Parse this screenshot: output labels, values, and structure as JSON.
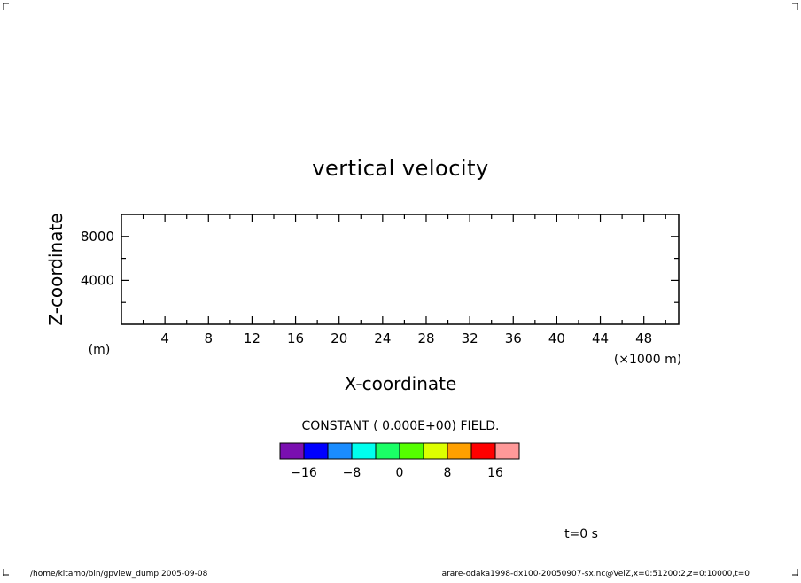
{
  "chart_data": {
    "type": "heatmap",
    "title": "vertical velocity",
    "xlabel": "X-coordinate",
    "ylabel": "Z-coordinate",
    "x_unit": "(×1000 m)",
    "y_unit": "(m)",
    "xlim": [
      0,
      51.2
    ],
    "ylim": [
      0,
      10000
    ],
    "x_ticks": [
      4,
      8,
      12,
      16,
      20,
      24,
      28,
      32,
      36,
      40,
      44,
      48
    ],
    "x_tick_labels": [
      "4",
      "8",
      "12",
      "16",
      "20",
      "24",
      "28",
      "32",
      "36",
      "40",
      "44",
      "48"
    ],
    "x_minor_step": 2,
    "y_ticks": [
      4000,
      8000
    ],
    "y_tick_labels": [
      "4000",
      "8000"
    ],
    "y_minor_step": 2000,
    "field_note": "CONSTANT ( 0.000E+00) FIELD.",
    "field_value": 0,
    "colorbar": {
      "colors": [
        "#7a0fb0",
        "#0000ff",
        "#1a8cff",
        "#00ffee",
        "#1aff66",
        "#55ff00",
        "#ddff00",
        "#ffa000",
        "#ff0000",
        "#ff9999"
      ],
      "tick_positions": [
        1,
        3,
        5,
        7,
        9
      ],
      "tick_labels": [
        "−16",
        "−8",
        "0",
        "8",
        "16"
      ]
    },
    "time_label": "t=0 s"
  },
  "footer": {
    "left": "/home/kitamo/bin/gpview_dump  2005-09-08",
    "right": "arare-odaka1998-dx100-20050907-sx.nc@VelZ,x=0:51200:2,z=0:10000,t=0"
  }
}
